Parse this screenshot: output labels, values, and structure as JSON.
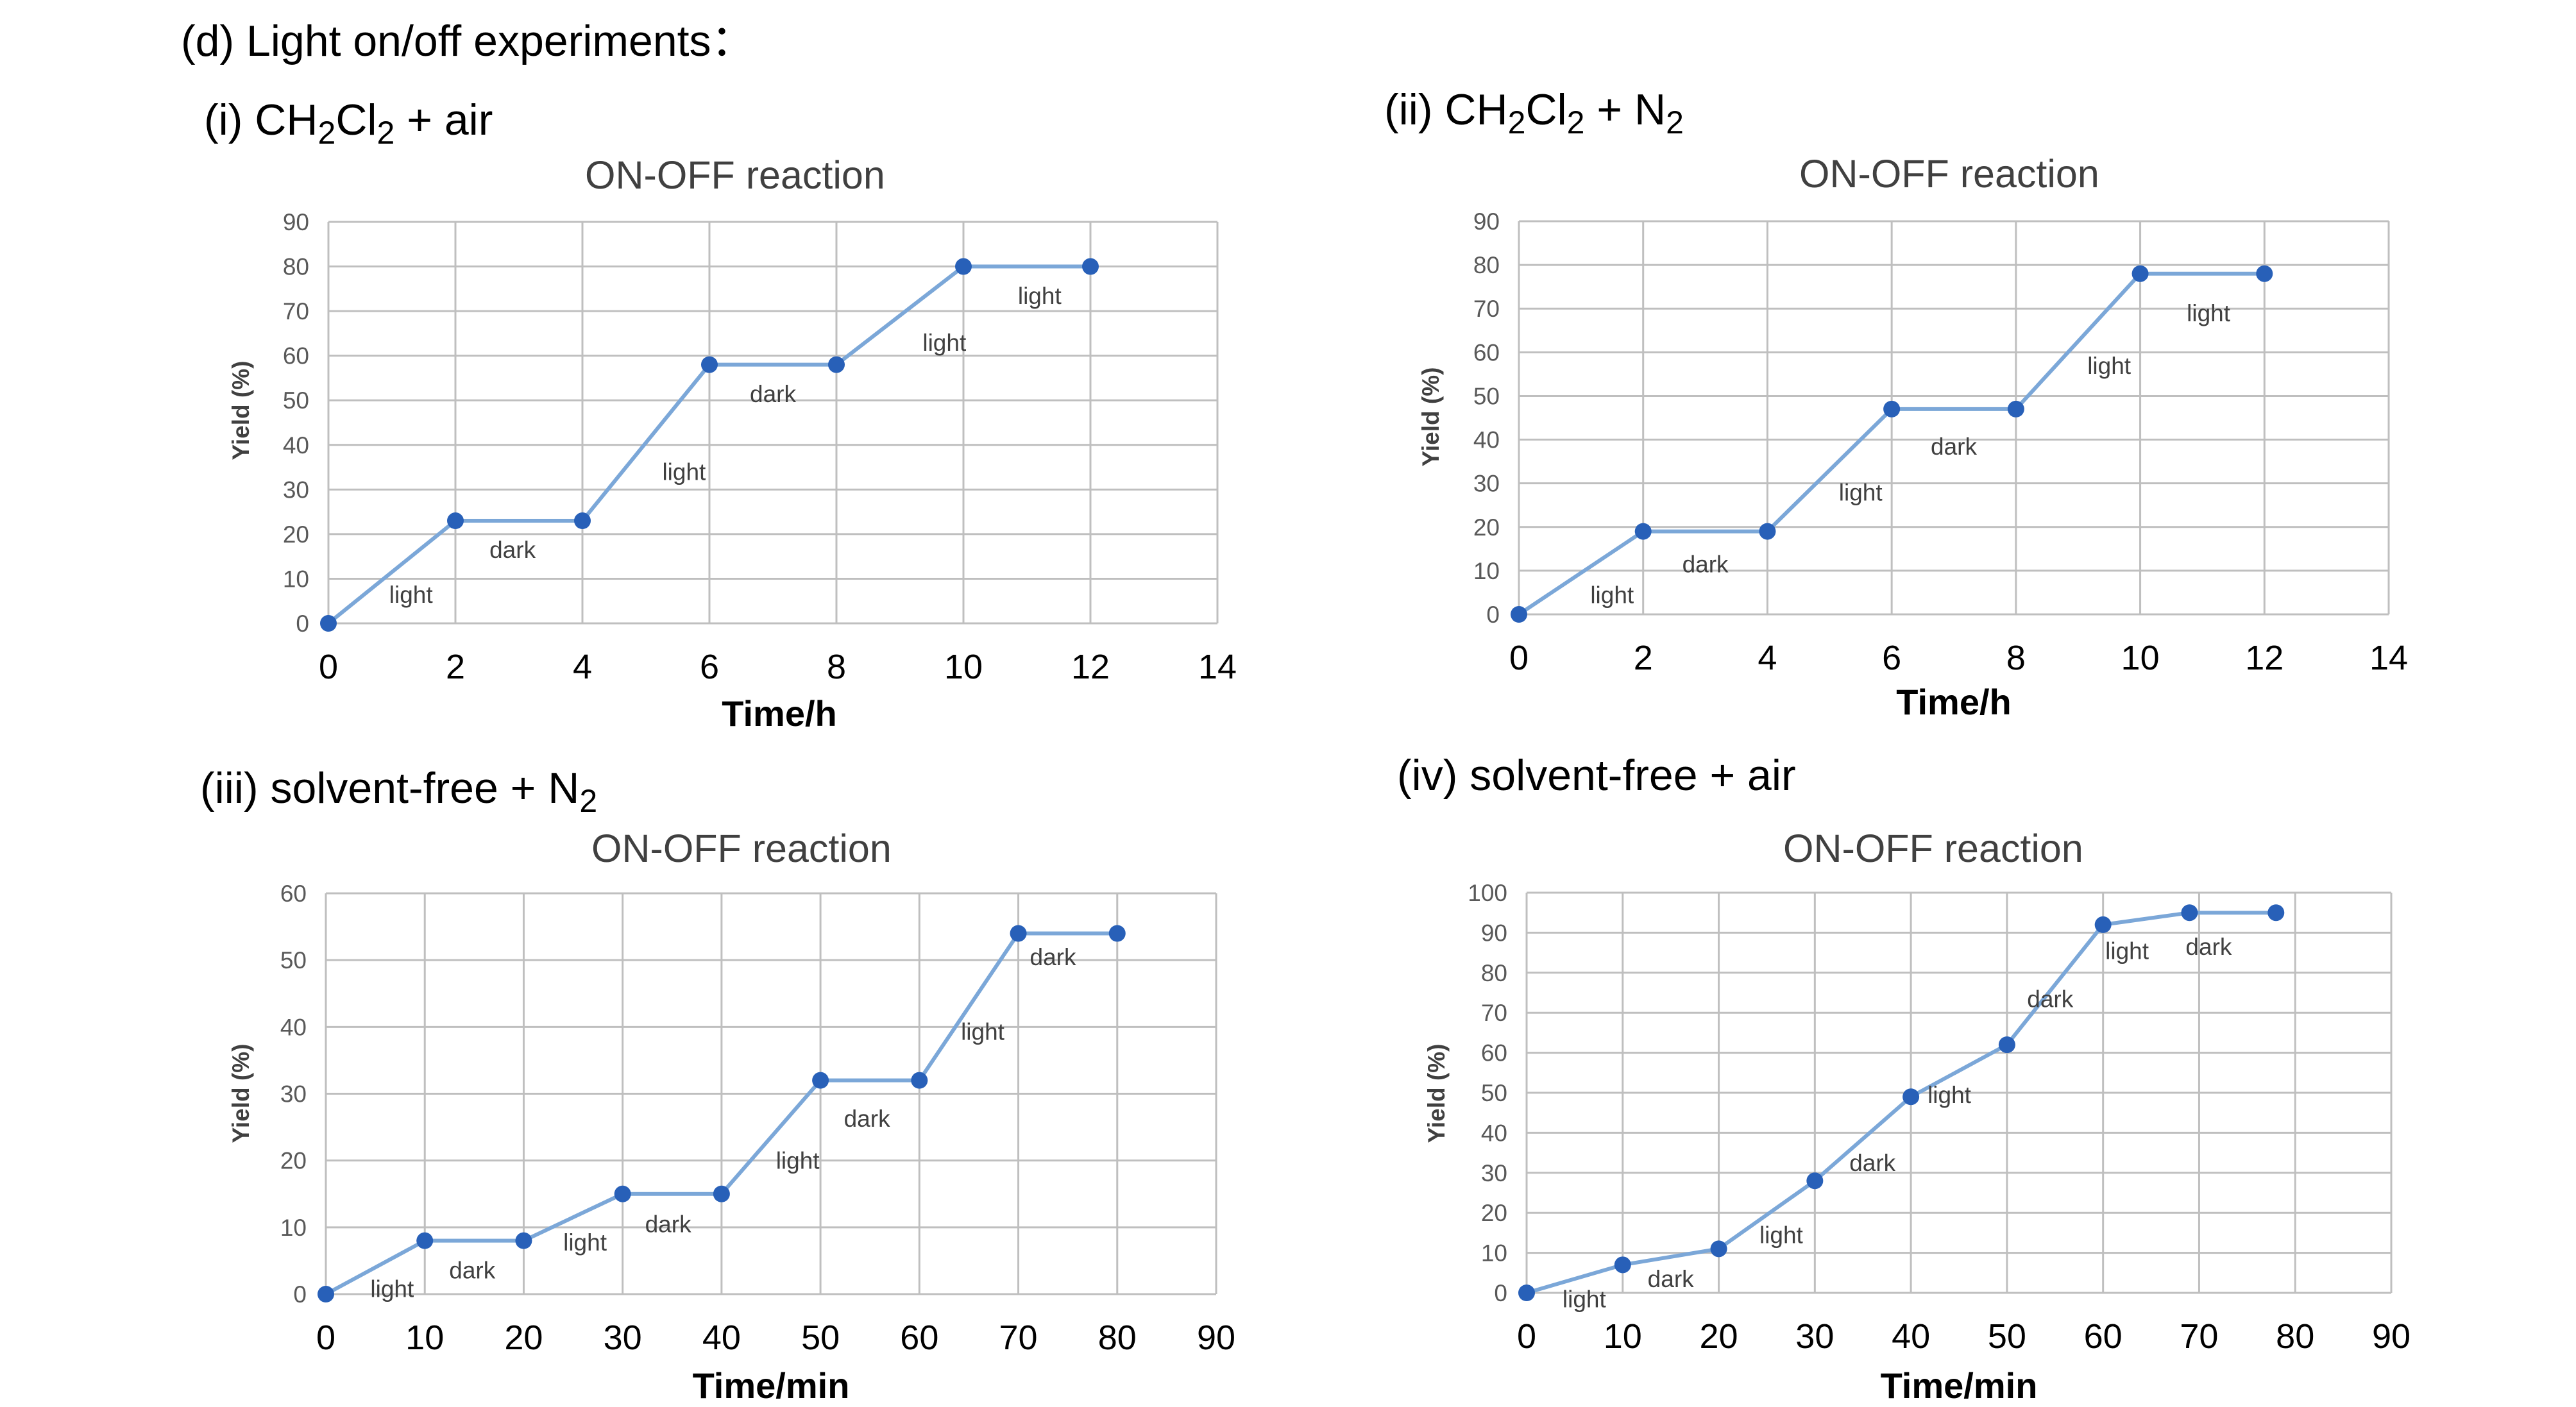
{
  "figure_title": "(d) Light on/off experiments：",
  "panels": [
    {
      "label_pre": "(i) CH",
      "label_s1": "2",
      "label_mid": "Cl",
      "label_s2": "2",
      "label_post": " + air"
    },
    {
      "label_pre": "(ii) CH",
      "label_s1": "2",
      "label_mid": "Cl",
      "label_s2": "2",
      "label_post": " + N",
      "label_s3": "2"
    },
    {
      "label_pre": "(iii) solvent-free + N",
      "label_s1": "2"
    },
    {
      "label_pre": "(iv) solvent-free + air"
    }
  ],
  "colors": {
    "line": "#7ba7d8",
    "marker": "#2860b8",
    "grid": "#bfbfbf"
  },
  "chart_data": [
    {
      "type": "line",
      "title": "ON-OFF reaction",
      "xlabel": "Time/h",
      "ylabel": "Yield (%)",
      "xlim": [
        0,
        14
      ],
      "ylim": [
        0,
        90
      ],
      "xticks": [
        0,
        2,
        4,
        6,
        8,
        10,
        12,
        14
      ],
      "yticks": [
        0,
        10,
        20,
        30,
        40,
        50,
        60,
        70,
        80,
        90
      ],
      "grid": true,
      "x": [
        0,
        2,
        4,
        6,
        8,
        10,
        12
      ],
      "y": [
        0,
        23,
        23,
        58,
        58,
        80,
        80
      ],
      "annotations": [
        {
          "text": "light",
          "x": 1.3,
          "y": 6.5
        },
        {
          "text": "dark",
          "x": 2.9,
          "y": 16.5
        },
        {
          "text": "light",
          "x": 5.6,
          "y": 34
        },
        {
          "text": "dark",
          "x": 7.0,
          "y": 51.5
        },
        {
          "text": "light",
          "x": 9.7,
          "y": 63
        },
        {
          "text": "dark",
          "x": 0,
          "y": 0,
          "hidden": true
        },
        {
          "text": "light",
          "x": 11.2,
          "y": 73.5
        }
      ]
    },
    {
      "type": "line",
      "title": "ON-OFF reaction",
      "xlabel": "Time/h",
      "ylabel": "Yield (%)",
      "xlim": [
        0,
        14
      ],
      "ylim": [
        0,
        90
      ],
      "xticks": [
        0,
        2,
        4,
        6,
        8,
        10,
        12,
        14
      ],
      "yticks": [
        0,
        10,
        20,
        30,
        40,
        50,
        60,
        70,
        80,
        90
      ],
      "grid": true,
      "x": [
        0,
        2,
        4,
        6,
        8,
        10,
        12
      ],
      "y": [
        0,
        19,
        19,
        47,
        47,
        78,
        78
      ],
      "annotations": [
        {
          "text": "light",
          "x": 1.5,
          "y": 4.5
        },
        {
          "text": "dark",
          "x": 3.0,
          "y": 11.5
        },
        {
          "text": "light",
          "x": 5.5,
          "y": 28
        },
        {
          "text": "dark",
          "x": 7.0,
          "y": 38.5
        },
        {
          "text": "light",
          "x": 9.5,
          "y": 57
        },
        {
          "text": "light",
          "x": 11.1,
          "y": 69
        }
      ]
    },
    {
      "type": "line",
      "title": "ON-OFF reaction",
      "xlabel": "Time/min",
      "ylabel": "Yield (%)",
      "xlim": [
        0,
        90
      ],
      "ylim": [
        0,
        60
      ],
      "xticks": [
        0,
        10,
        20,
        30,
        40,
        50,
        60,
        70,
        80,
        90
      ],
      "yticks": [
        0,
        10,
        20,
        30,
        40,
        50,
        60
      ],
      "grid": true,
      "x": [
        0,
        10,
        20,
        30,
        40,
        50,
        60,
        70,
        80
      ],
      "y": [
        0,
        8,
        8,
        15,
        15,
        32,
        32,
        54,
        54
      ],
      "annotations": [
        {
          "text": "light",
          "x": 6.7,
          "y": 0.8
        },
        {
          "text": "dark",
          "x": 14.8,
          "y": 3.6
        },
        {
          "text": "light",
          "x": 26.2,
          "y": 7.8
        },
        {
          "text": "dark",
          "x": 34.6,
          "y": 10.5
        },
        {
          "text": "light",
          "x": 47.7,
          "y": 20
        },
        {
          "text": "dark",
          "x": 54.7,
          "y": 26.3
        },
        {
          "text": "light",
          "x": 66.4,
          "y": 39.3
        },
        {
          "text": "dark",
          "x": 73.5,
          "y": 50.5
        }
      ]
    },
    {
      "type": "line",
      "title": "ON-OFF reaction",
      "xlabel": "Time/min",
      "ylabel": "Yield (%)",
      "xlim": [
        0,
        90
      ],
      "ylim": [
        0,
        100
      ],
      "xticks": [
        0,
        10,
        20,
        30,
        40,
        50,
        60,
        70,
        80,
        90
      ],
      "yticks": [
        0,
        10,
        20,
        30,
        40,
        50,
        60,
        70,
        80,
        90,
        100
      ],
      "grid": true,
      "x": [
        0,
        10,
        20,
        30,
        40,
        50,
        60,
        69,
        78
      ],
      "y": [
        0,
        7,
        11,
        28,
        49,
        62,
        92,
        95,
        95
      ],
      "annotations": [
        {
          "text": "light",
          "x": 6.0,
          "y": -1.5
        },
        {
          "text": "dark",
          "x": 15.0,
          "y": 3.5
        },
        {
          "text": "light",
          "x": 26.5,
          "y": 14.5
        },
        {
          "text": "dark",
          "x": 36.0,
          "y": 32.5
        },
        {
          "text": "light",
          "x": 44.0,
          "y": 49.5
        },
        {
          "text": "dark",
          "x": 54.5,
          "y": 73.5
        },
        {
          "text": "light",
          "x": 62.5,
          "y": 85.5
        },
        {
          "text": "dark",
          "x": 71.0,
          "y": 86.5
        }
      ]
    }
  ]
}
